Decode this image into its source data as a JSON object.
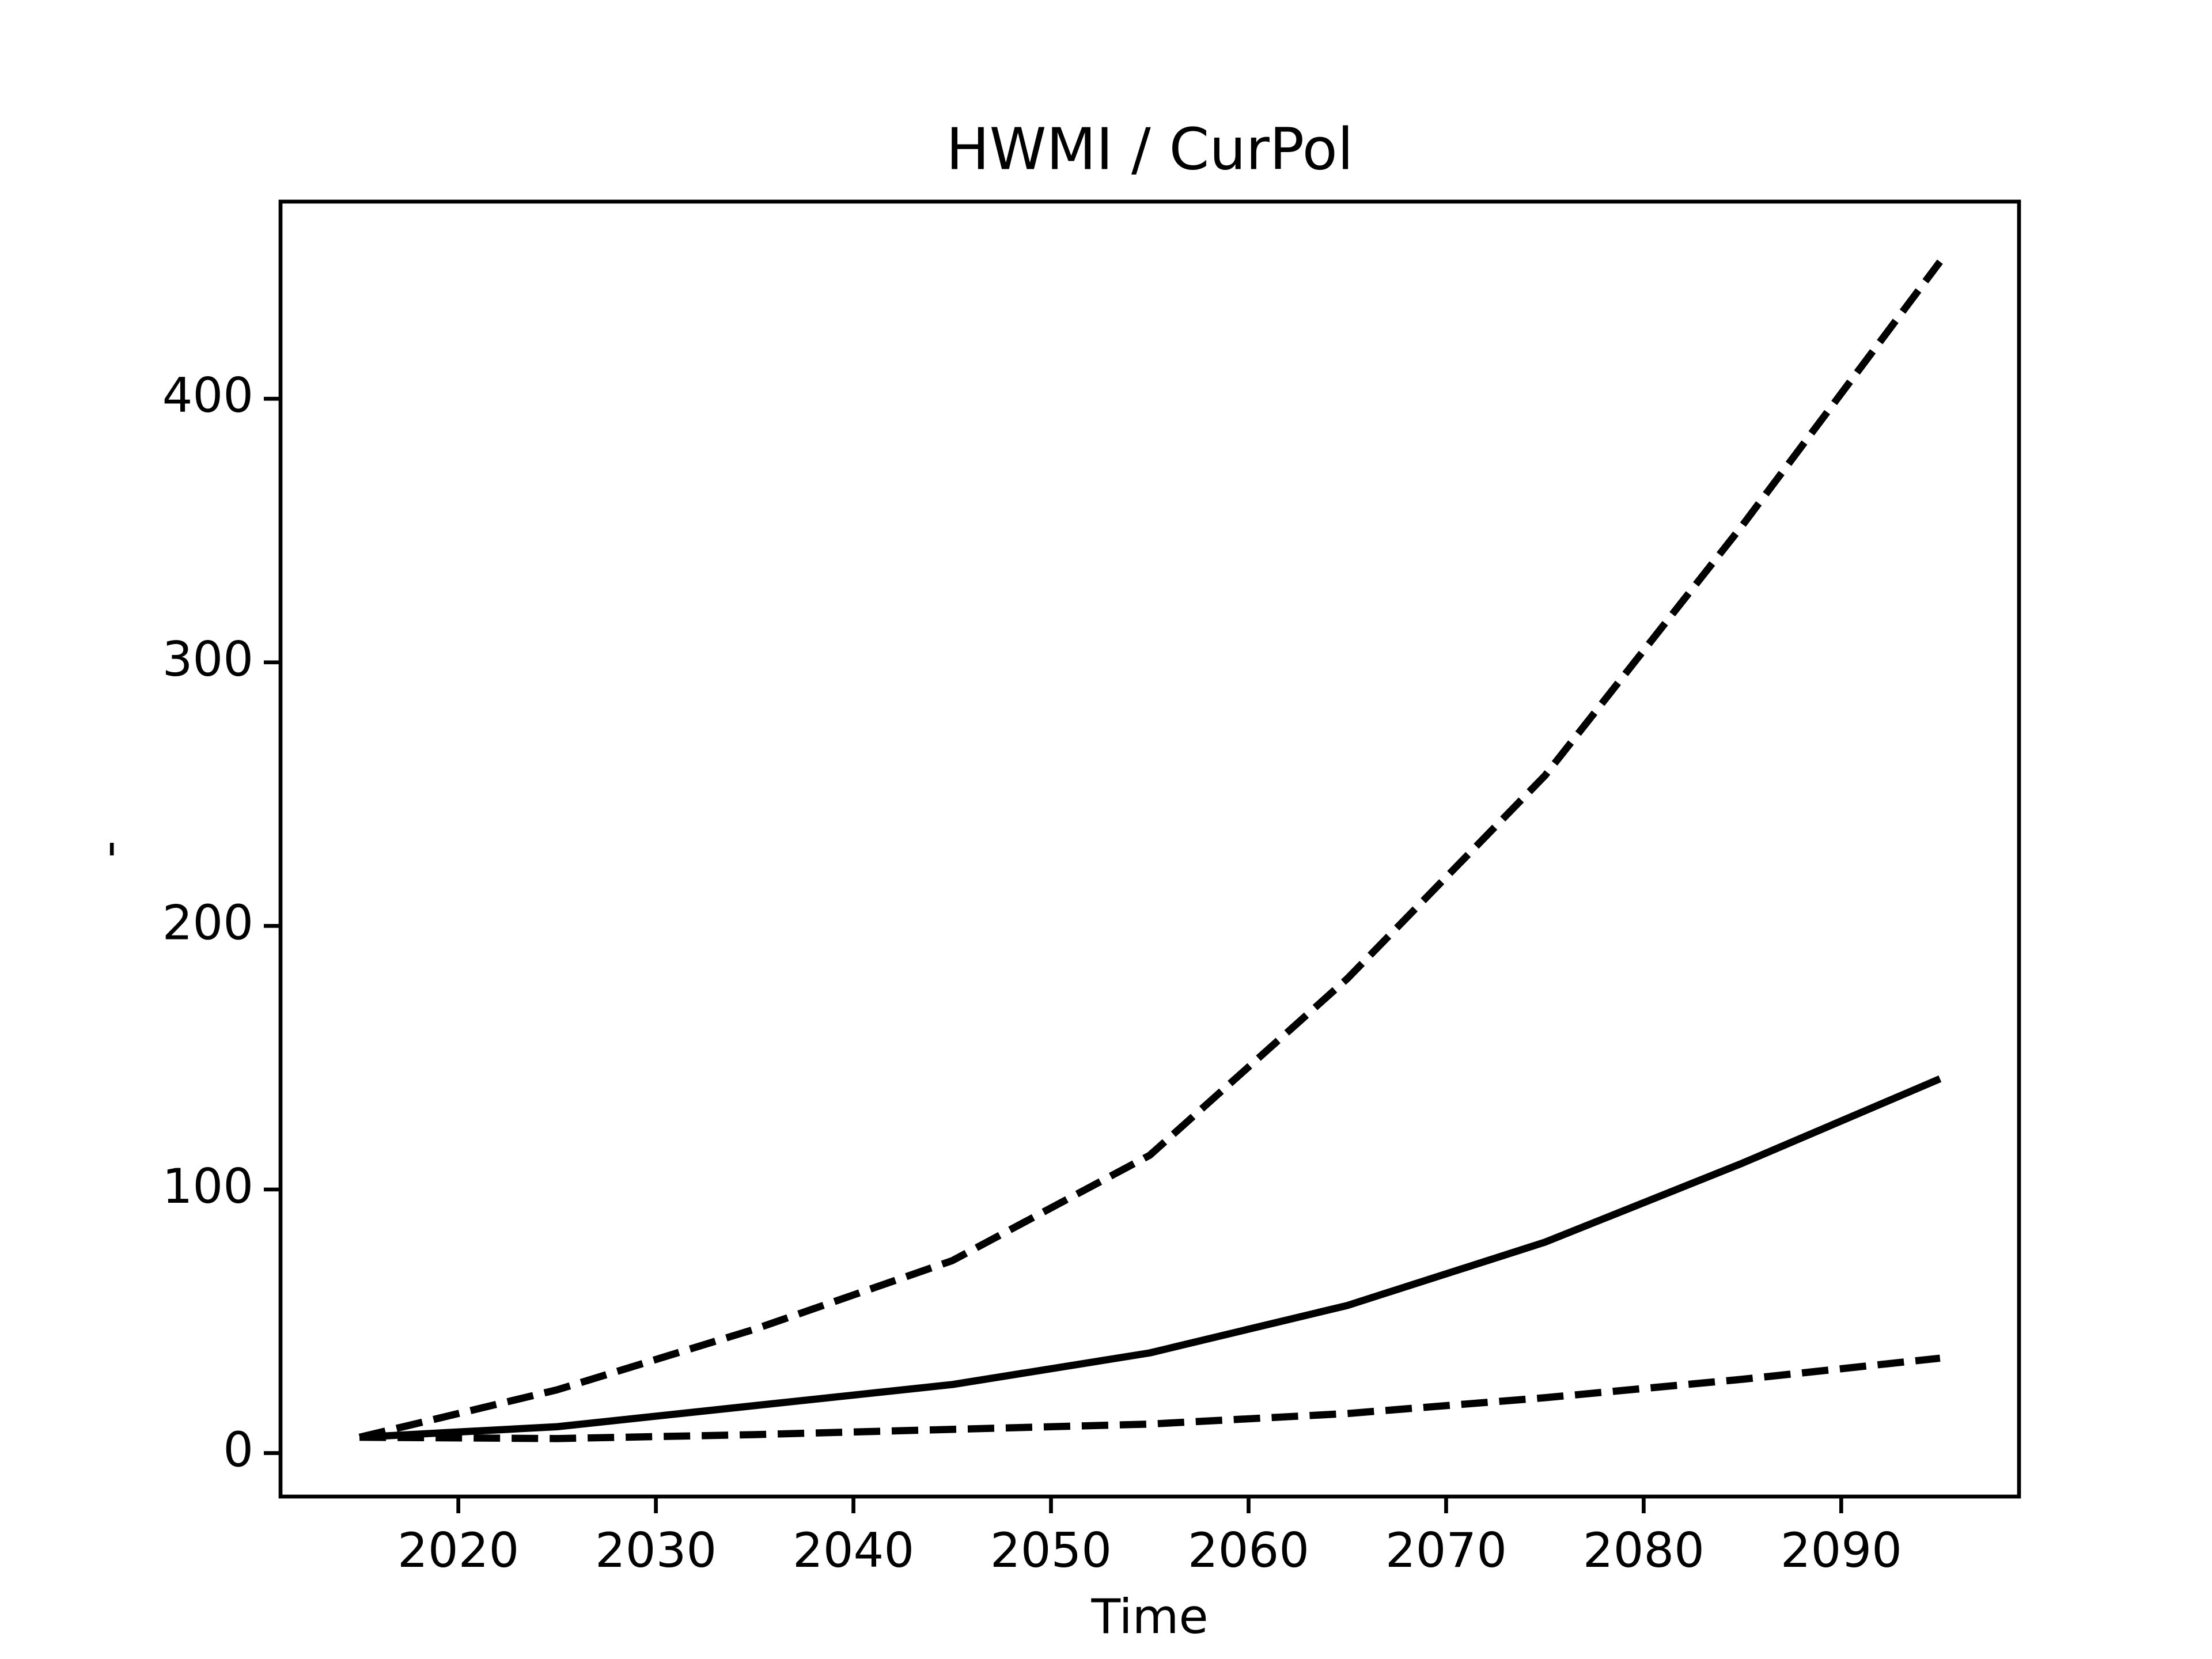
{
  "chart_data": {
    "type": "line",
    "title": "HWMI / CurPol",
    "x_label": "Time",
    "y_label": "-",
    "x": [
      2015,
      2025,
      2035,
      2045,
      2055,
      2065,
      2075,
      2085,
      2095
    ],
    "series": [
      {
        "color": "#000000",
        "dashed": false,
        "values": [
          6,
          10,
          18,
          26,
          38,
          56,
          80,
          110,
          142
        ]
      },
      {
        "color": "#000000",
        "dashed": true,
        "values": [
          6,
          24,
          47,
          73,
          113,
          180,
          257,
          352,
          452
        ]
      },
      {
        "color": "#000000",
        "dashed": true,
        "values": [
          6,
          5.5,
          7,
          9,
          11,
          15,
          21,
          28,
          36
        ]
      }
    ],
    "xlim": [
      2011,
      2099
    ],
    "xticks": [
      2020,
      2030,
      2040,
      2050,
      2060,
      2070,
      2080,
      2090
    ],
    "ylim": [
      -16.5,
      474.8
    ],
    "yticks": [
      0,
      100,
      200,
      300,
      400
    ],
    "grid": false
  }
}
